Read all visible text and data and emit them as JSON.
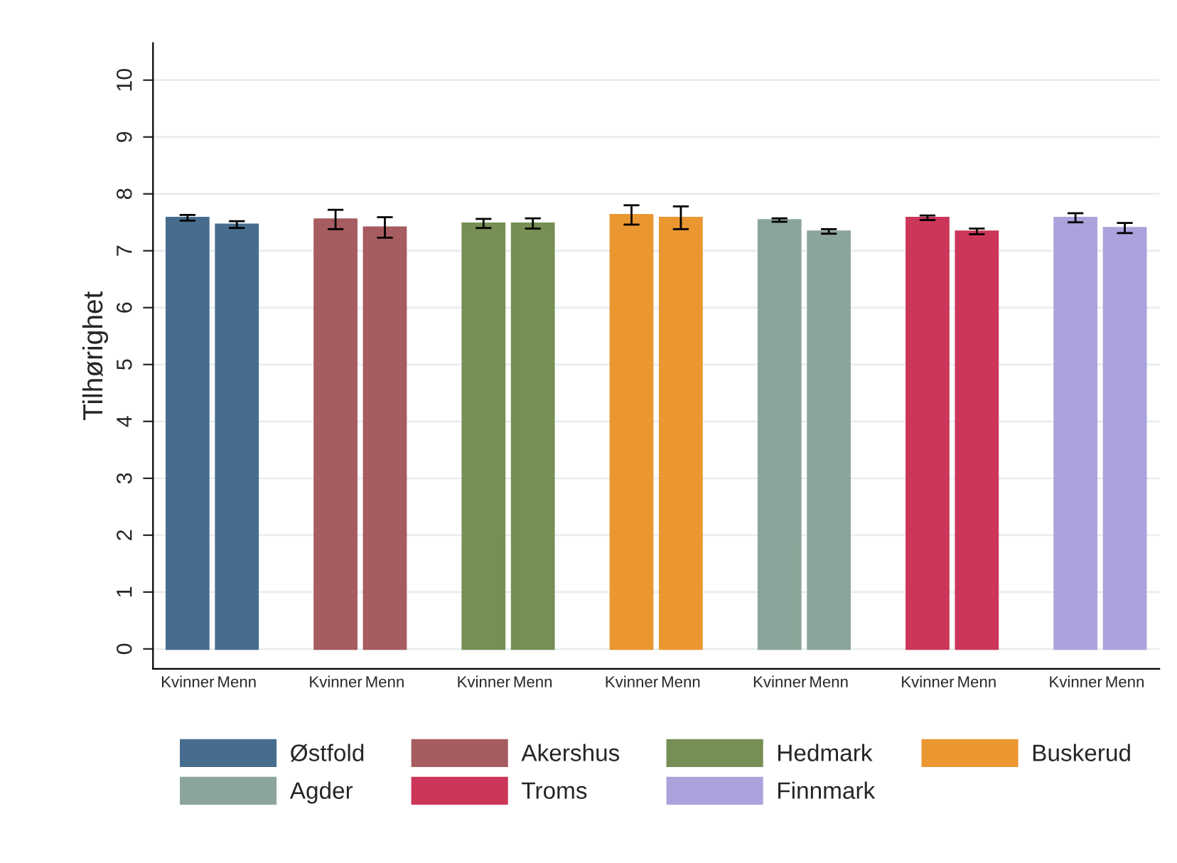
{
  "chart_data": {
    "type": "bar",
    "ylabel": "Tilhørighet",
    "ylim": [
      -0.35,
      10.65
    ],
    "yticks": [
      0,
      1,
      2,
      3,
      4,
      5,
      6,
      7,
      8,
      9,
      10
    ],
    "grid": "y",
    "legend": "bottom",
    "categories": [
      "Kvinner",
      "Menn",
      null,
      "Kvinner",
      "Menn",
      null,
      "Kvinner",
      "Menn",
      null,
      "Kvinner",
      "Menn",
      null,
      "Kvinner",
      "Menn",
      null,
      "Kvinner",
      "Menn",
      null,
      "Kvinner",
      "Menn"
    ],
    "series": [
      {
        "name": "Østfold",
        "color": "#476d8e",
        "values": [
          7.58,
          7.46,
          null,
          null,
          null,
          null,
          null,
          null,
          null,
          null,
          null,
          null,
          null,
          null,
          null,
          null,
          null,
          null,
          null,
          null
        ],
        "errors": [
          0.05,
          0.06,
          null,
          null,
          null,
          null,
          null,
          null,
          null,
          null,
          null,
          null,
          null,
          null,
          null,
          null,
          null,
          null,
          null,
          null
        ]
      },
      {
        "name": "Akershus",
        "color": "#a65c60",
        "values": [
          null,
          null,
          null,
          7.55,
          7.41,
          null,
          null,
          null,
          null,
          null,
          null,
          null,
          null,
          null,
          null,
          null,
          null,
          null,
          null,
          null
        ],
        "errors": [
          null,
          null,
          null,
          0.17,
          0.18,
          null,
          null,
          null,
          null,
          null,
          null,
          null,
          null,
          null,
          null,
          null,
          null,
          null,
          null,
          null
        ]
      },
      {
        "name": "Hedmark",
        "color": "#768f55",
        "values": [
          null,
          null,
          null,
          null,
          null,
          null,
          7.48,
          7.48,
          null,
          null,
          null,
          null,
          null,
          null,
          null,
          null,
          null,
          null,
          null,
          null
        ],
        "errors": [
          null,
          null,
          null,
          null,
          null,
          null,
          0.08,
          0.09,
          null,
          null,
          null,
          null,
          null,
          null,
          null,
          null,
          null,
          null,
          null,
          null
        ]
      },
      {
        "name": "Buskerud",
        "color": "#ea9732",
        "values": [
          null,
          null,
          null,
          null,
          null,
          null,
          null,
          null,
          null,
          7.63,
          7.58,
          null,
          null,
          null,
          null,
          null,
          null,
          null,
          null,
          null
        ],
        "errors": [
          null,
          null,
          null,
          null,
          null,
          null,
          null,
          null,
          null,
          0.17,
          0.2,
          null,
          null,
          null,
          null,
          null,
          null,
          null,
          null,
          null
        ]
      },
      {
        "name": "Agder",
        "color": "#8ba59a",
        "values": [
          null,
          null,
          null,
          null,
          null,
          null,
          null,
          null,
          null,
          null,
          null,
          null,
          7.54,
          7.34,
          null,
          null,
          null,
          null,
          null,
          null
        ],
        "errors": [
          null,
          null,
          null,
          null,
          null,
          null,
          null,
          null,
          null,
          null,
          null,
          null,
          0.03,
          0.04,
          null,
          null,
          null,
          null,
          null,
          null
        ]
      },
      {
        "name": "Troms",
        "color": "#cc3659",
        "values": [
          null,
          null,
          null,
          null,
          null,
          null,
          null,
          null,
          null,
          null,
          null,
          null,
          null,
          null,
          null,
          7.58,
          7.34,
          null,
          null,
          null
        ],
        "errors": [
          null,
          null,
          null,
          null,
          null,
          null,
          null,
          null,
          null,
          null,
          null,
          null,
          null,
          null,
          null,
          0.04,
          0.05,
          null,
          null,
          null
        ]
      },
      {
        "name": "Finnmark",
        "color": "#aaa3db",
        "values": [
          null,
          null,
          null,
          null,
          null,
          null,
          null,
          null,
          null,
          null,
          null,
          null,
          null,
          null,
          null,
          null,
          null,
          null,
          7.58,
          7.4
        ],
        "errors": [
          null,
          null,
          null,
          null,
          null,
          null,
          null,
          null,
          null,
          null,
          null,
          null,
          null,
          null,
          null,
          null,
          null,
          null,
          0.08,
          0.09
        ]
      }
    ]
  }
}
